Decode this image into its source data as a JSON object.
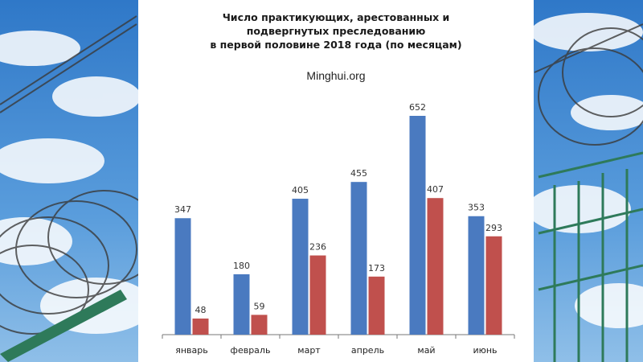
{
  "colors": {
    "series_1": "#4a7ac0",
    "series_2": "#c0504d",
    "sky": "#3f86d0",
    "axis": "#777777"
  },
  "background": {
    "description_icons": [
      "barbed-wire-icon",
      "fence-icon"
    ]
  },
  "chart_data": {
    "type": "bar",
    "title_lines": [
      "Число практикующих, арестованных и",
      "подвергнутых преследованию",
      "в первой половине 2018 года (по месяцам)"
    ],
    "subtitle": "Minghui.org",
    "categories": [
      "январь",
      "февраль",
      "март",
      "апрель",
      "май",
      "июнь"
    ],
    "series": [
      {
        "values": [
          347,
          180,
          405,
          455,
          652,
          353
        ]
      },
      {
        "values": [
          48,
          59,
          236,
          173,
          407,
          293
        ]
      }
    ],
    "ylim": [
      0,
      700
    ],
    "grid": false,
    "legend": "none"
  }
}
